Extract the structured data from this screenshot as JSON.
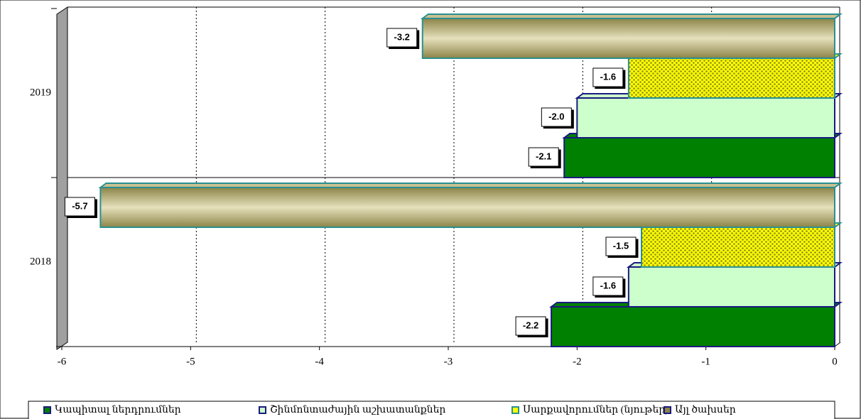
{
  "chart_data": {
    "type": "bar",
    "orientation": "horizontal",
    "categories": [
      "2018",
      "2019"
    ],
    "series": [
      {
        "name": "Կապիտալ ներդրումներ",
        "color": "#008000",
        "values": [
          -2.2,
          -2.1
        ],
        "value_labels": [
          "-2.2",
          "-2.1"
        ]
      },
      {
        "name": "Շինմոնտաժային աշխատանքներ",
        "color": "#ccffcc",
        "values": [
          -1.6,
          -2.0
        ],
        "value_labels": [
          "-1.6",
          "-2.0"
        ]
      },
      {
        "name": "Սարքավորումներ (նյութեր)",
        "color": "#ffff00",
        "values": [
          -1.5,
          -1.6
        ],
        "value_labels": [
          "-1.5",
          "-1.6"
        ]
      },
      {
        "name": "Այլ ծախսեր",
        "color": "#b8b078",
        "values": [
          -5.7,
          -3.2
        ],
        "value_labels": [
          "-5.7",
          "-3.2"
        ]
      }
    ],
    "xlim": [
      -6,
      0
    ],
    "xticks": [
      -6,
      -5,
      -4,
      -3,
      -2,
      -1,
      0
    ],
    "grid": true,
    "legend": "bottom"
  }
}
